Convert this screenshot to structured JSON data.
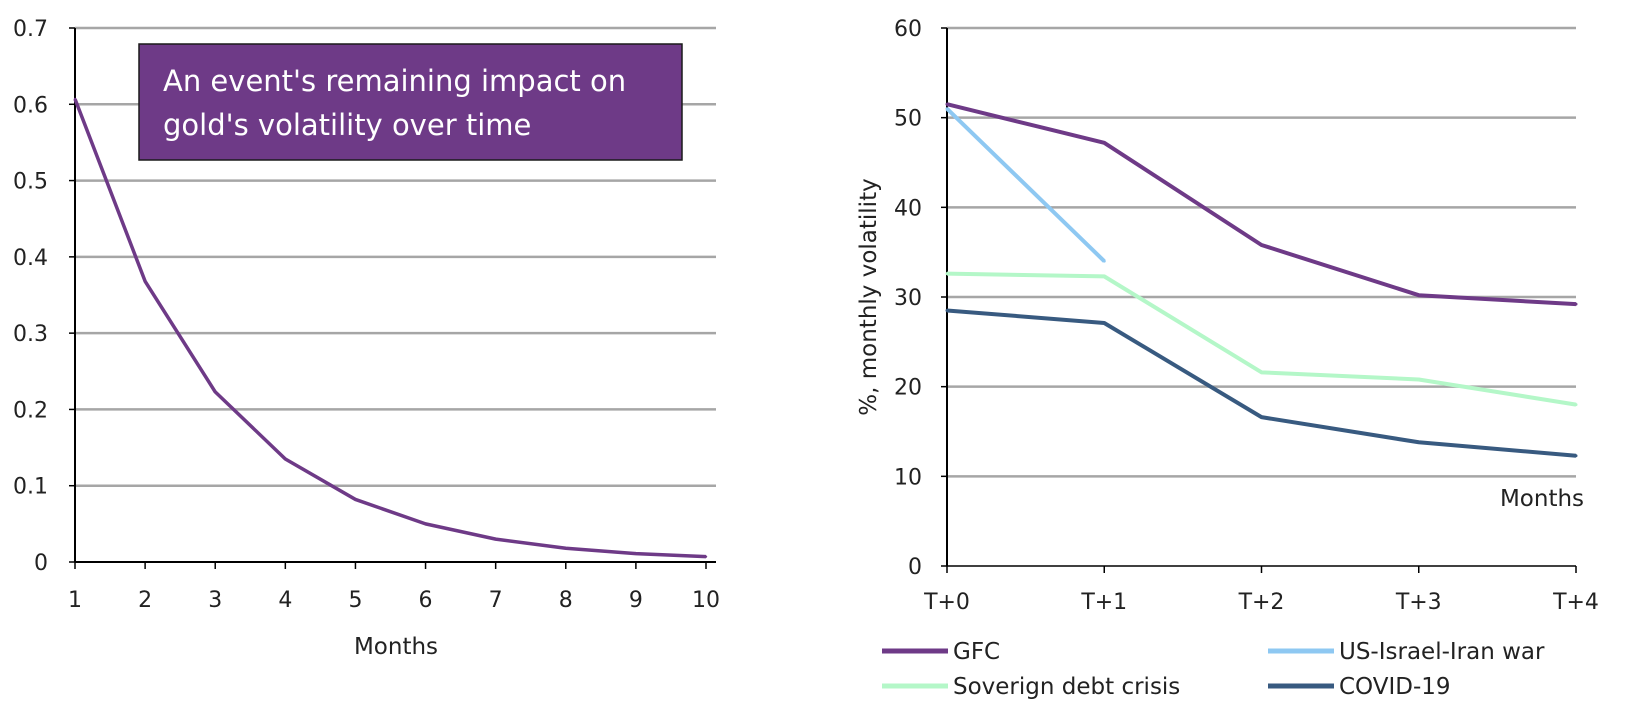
{
  "chart_data": [
    {
      "type": "line",
      "title": "",
      "xlabel": "Months",
      "ylabel": "",
      "x": [
        1,
        2,
        3,
        4,
        5,
        6,
        7,
        8,
        9,
        10
      ],
      "y_ticks": [
        "0",
        "0.1",
        "0.2",
        "0.3",
        "0.4",
        "0.5",
        "0.6",
        "0.7"
      ],
      "ylim": [
        0,
        0.7
      ],
      "grid": true,
      "annotation": {
        "lines": [
          "An event's remaining impact on",
          "gold's volatility over time"
        ]
      },
      "series": [
        {
          "name": "Remaining impact",
          "color": "#6e3a87",
          "values": [
            0.607,
            0.368,
            0.223,
            0.135,
            0.082,
            0.05,
            0.03,
            0.018,
            0.011,
            0.007
          ]
        }
      ]
    },
    {
      "type": "line",
      "title": "",
      "xlabel": "Months",
      "ylabel": "%, monthly volatility",
      "categories": [
        "T+0",
        "T+1",
        "T+2",
        "T+3",
        "T+4"
      ],
      "y_ticks": [
        "0",
        "10",
        "20",
        "30",
        "40",
        "50",
        "60"
      ],
      "ylim": [
        0,
        60
      ],
      "grid": true,
      "legend_position": "bottom",
      "series": [
        {
          "name": "GFC",
          "color": "#6e3a87",
          "values": [
            51.5,
            47.2,
            35.8,
            30.2,
            29.2
          ]
        },
        {
          "name": "US-Israel-Iran war",
          "color": "#8ec8f2",
          "values": [
            51.0,
            34.0,
            null,
            null,
            null
          ]
        },
        {
          "name": "Soverign debt crisis",
          "color": "#b4f7c8",
          "values": [
            32.6,
            32.3,
            21.6,
            20.8,
            18.0
          ]
        },
        {
          "name": "COVID-19",
          "color": "#385a80",
          "values": [
            28.5,
            27.1,
            16.6,
            13.8,
            12.3
          ]
        }
      ]
    }
  ]
}
